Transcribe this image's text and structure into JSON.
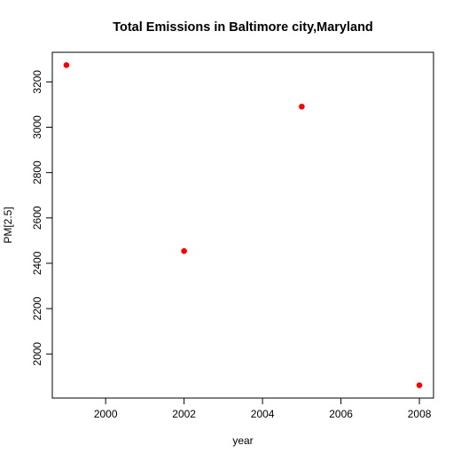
{
  "chart_data": {
    "type": "scatter",
    "title": "Total Emissions in Baltimore city,Maryland",
    "xlabel": "year",
    "ylabel": "PM[2.5]",
    "x": [
      1999,
      2002,
      2005,
      2008
    ],
    "y": [
      3274,
      2454,
      3091,
      1862
    ],
    "xlim": [
      1999,
      2008
    ],
    "ylim": [
      1862,
      3274
    ],
    "xticks": [
      2000,
      2002,
      2004,
      2006,
      2008
    ],
    "yticks": [
      2000,
      2200,
      2400,
      2600,
      2800,
      3000,
      3200
    ],
    "point_color": "#ff0000",
    "grid": false
  }
}
